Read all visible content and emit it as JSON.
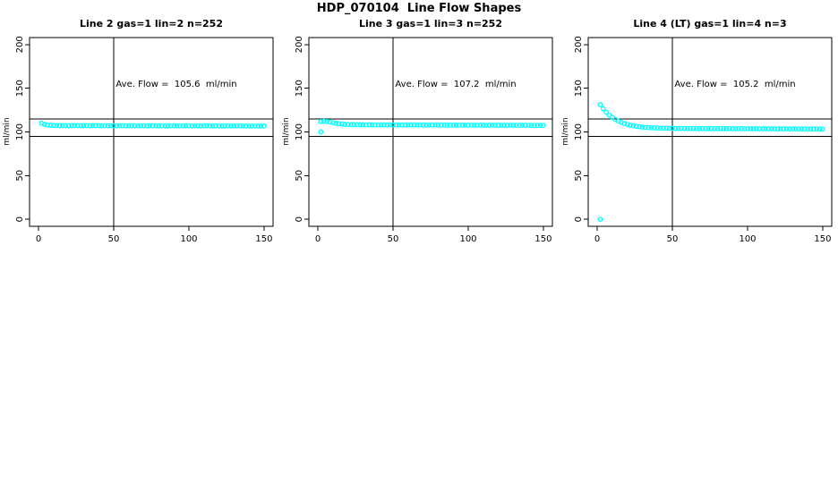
{
  "title": "HDP_070104  Line Flow Shapes",
  "colors": {
    "points": "#00ffff",
    "axis": "#000000",
    "background": "#ffffff"
  },
  "chart_data": [
    {
      "type": "scatter",
      "title": "Line 2 gas=1 lin=2 n=252",
      "annotation": "Ave. Flow =  105.6  ml/min",
      "ave_flow": 105.6,
      "n": 252,
      "xlabel": "",
      "ylabel": "ml/min",
      "xlim": [
        0,
        150
      ],
      "ylim": [
        0,
        200
      ],
      "xticks": [
        0,
        50,
        100,
        150
      ],
      "yticks": [
        0,
        50,
        100,
        150,
        200
      ],
      "reference_h": [
        95,
        115
      ],
      "reference_v": 50,
      "x": [
        2,
        4,
        6,
        8,
        10,
        12,
        14,
        16,
        18,
        20,
        22,
        24,
        26,
        28,
        30,
        32,
        34,
        36,
        38,
        40,
        42,
        44,
        46,
        48,
        50,
        52,
        54,
        56,
        58,
        60,
        62,
        64,
        66,
        68,
        70,
        72,
        74,
        76,
        78,
        80,
        82,
        84,
        86,
        88,
        90,
        92,
        94,
        96,
        98,
        100,
        102,
        104,
        106,
        108,
        110,
        112,
        114,
        116,
        118,
        120,
        122,
        124,
        126,
        128,
        130,
        132,
        134,
        136,
        138,
        140,
        142,
        144,
        146,
        148,
        150
      ],
      "y": [
        110.0,
        108.6,
        107.9,
        107.6,
        107.4,
        107.3,
        107.2,
        107.3,
        107.2,
        107.1,
        107.2,
        107.3,
        107.2,
        107.1,
        107.2,
        107.2,
        107.1,
        107.2,
        107.3,
        107.2,
        107.1,
        107.2,
        107.2,
        107.1,
        107.0,
        107.1,
        107.2,
        107.1,
        107.0,
        107.1,
        107.2,
        107.1,
        107.0,
        107.1,
        107.1,
        107.0,
        107.1,
        107.2,
        107.1,
        107.0,
        107.1,
        107.0,
        106.9,
        107.0,
        107.1,
        107.0,
        106.9,
        107.0,
        107.1,
        107.0,
        106.9,
        107.0,
        107.0,
        106.9,
        107.0,
        107.1,
        107.0,
        106.9,
        107.0,
        106.9,
        106.8,
        106.9,
        107.0,
        106.9,
        106.8,
        106.9,
        107.0,
        106.9,
        106.8,
        106.9,
        106.8,
        106.9,
        106.8,
        106.8,
        106.8
      ],
      "outliers": []
    },
    {
      "type": "scatter",
      "title": "Line 3 gas=1 lin=3 n=252",
      "annotation": "Ave. Flow =  107.2  ml/min",
      "ave_flow": 107.2,
      "n": 252,
      "xlabel": "",
      "ylabel": "ml/min",
      "xlim": [
        0,
        150
      ],
      "ylim": [
        0,
        200
      ],
      "xticks": [
        0,
        50,
        100,
        150
      ],
      "yticks": [
        0,
        50,
        100,
        150,
        200
      ],
      "reference_h": [
        95,
        115
      ],
      "reference_v": 50,
      "x": [
        2,
        4,
        6,
        8,
        10,
        12,
        14,
        16,
        18,
        20,
        22,
        24,
        26,
        28,
        30,
        32,
        34,
        36,
        38,
        40,
        42,
        44,
        46,
        48,
        50,
        52,
        54,
        56,
        58,
        60,
        62,
        64,
        66,
        68,
        70,
        72,
        74,
        76,
        78,
        80,
        82,
        84,
        86,
        88,
        90,
        92,
        94,
        96,
        98,
        100,
        102,
        104,
        106,
        108,
        110,
        112,
        114,
        116,
        118,
        120,
        122,
        124,
        126,
        128,
        130,
        132,
        134,
        136,
        138,
        140,
        142,
        144,
        146,
        148,
        150
      ],
      "y": [
        112.0,
        112.3,
        112.0,
        111.4,
        110.6,
        109.9,
        109.4,
        109.0,
        108.7,
        108.5,
        108.4,
        108.3,
        108.3,
        108.2,
        108.2,
        108.1,
        108.2,
        108.1,
        108.1,
        108.0,
        108.1,
        108.0,
        108.0,
        108.1,
        108.0,
        107.9,
        108.0,
        108.0,
        107.9,
        108.0,
        108.0,
        107.9,
        107.9,
        108.0,
        107.9,
        107.8,
        107.9,
        108.0,
        107.9,
        107.8,
        107.9,
        107.8,
        107.8,
        107.9,
        107.8,
        107.7,
        107.8,
        107.9,
        107.8,
        107.7,
        107.8,
        107.7,
        107.7,
        107.8,
        107.7,
        107.6,
        107.7,
        107.8,
        107.7,
        107.6,
        107.7,
        107.6,
        107.6,
        107.7,
        107.6,
        107.5,
        107.6,
        107.7,
        107.6,
        107.5,
        107.6,
        107.5,
        107.5,
        107.6,
        107.5
      ],
      "outliers": [
        [
          2,
          100
        ]
      ]
    },
    {
      "type": "scatter",
      "title": "Line 4 (LT) gas=1 lin=4 n=3",
      "annotation": "Ave. Flow =  105.2  ml/min",
      "ave_flow": 105.2,
      "n": 3,
      "xlabel": "",
      "ylabel": "ml/min",
      "xlim": [
        0,
        150
      ],
      "ylim": [
        0,
        200
      ],
      "xticks": [
        0,
        50,
        100,
        150
      ],
      "yticks": [
        0,
        50,
        100,
        150,
        200
      ],
      "reference_h": [
        95,
        115
      ],
      "reference_v": 50,
      "x": [
        2,
        4,
        6,
        8,
        10,
        12,
        14,
        16,
        18,
        20,
        22,
        24,
        26,
        28,
        30,
        32,
        34,
        36,
        38,
        40,
        42,
        44,
        46,
        48,
        50,
        52,
        54,
        56,
        58,
        60,
        62,
        64,
        66,
        68,
        70,
        72,
        74,
        76,
        78,
        80,
        82,
        84,
        86,
        88,
        90,
        92,
        94,
        96,
        98,
        100,
        102,
        104,
        106,
        108,
        110,
        112,
        114,
        116,
        118,
        120,
        122,
        124,
        126,
        128,
        130,
        132,
        134,
        136,
        138,
        140,
        142,
        144,
        146,
        148,
        150
      ],
      "y": [
        131.2,
        126.5,
        122.5,
        119.2,
        116.5,
        114.3,
        112.4,
        110.9,
        109.6,
        108.6,
        107.7,
        107.0,
        106.4,
        105.9,
        105.5,
        105.2,
        105.0,
        104.8,
        104.6,
        104.5,
        104.4,
        104.3,
        104.2,
        104.2,
        104.1,
        104.1,
        104.0,
        104.0,
        104.0,
        103.9,
        103.9,
        104.0,
        103.9,
        103.8,
        103.9,
        103.8,
        103.8,
        103.9,
        103.8,
        103.7,
        103.8,
        103.8,
        103.7,
        103.8,
        103.7,
        103.7,
        103.8,
        103.7,
        103.6,
        103.7,
        103.7,
        103.6,
        103.7,
        103.6,
        103.6,
        103.7,
        103.6,
        103.6,
        103.6,
        103.5,
        103.6,
        103.5,
        103.6,
        103.5,
        103.5,
        103.6,
        103.5,
        103.5,
        103.5,
        103.4,
        103.5,
        103.4,
        103.5,
        103.4,
        103.4
      ],
      "outliers": [
        [
          2,
          0
        ]
      ]
    }
  ]
}
